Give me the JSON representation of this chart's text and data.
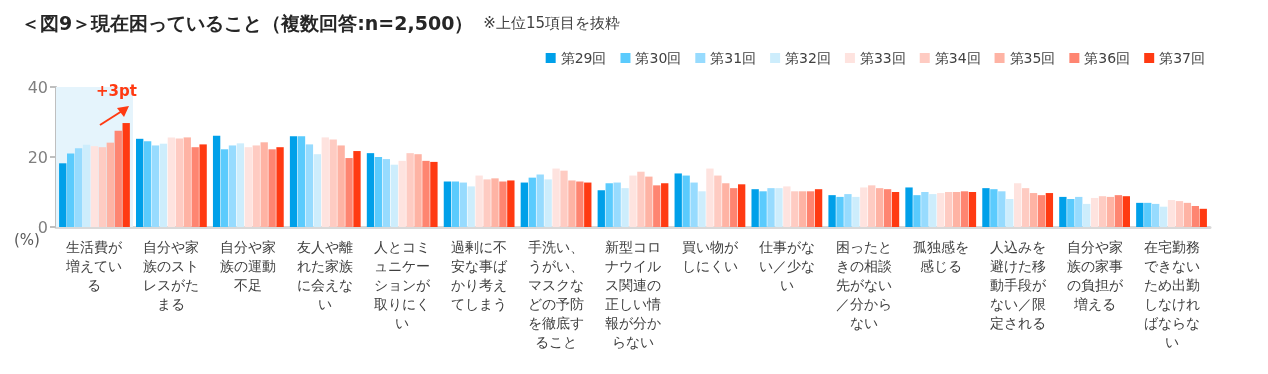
{
  "chart_data": {
    "type": "bar",
    "title": "＜図9＞現在困っていること（複数回答:n=2,500）",
    "subtitle": "※上位15項目を抜粋",
    "ylabel": "(%)",
    "categories": [
      "生活費が増えている",
      "自分や家族のストレスがたまる",
      "自分や家族の運動不足",
      "友人や離れた家族に会えない",
      "人とコミュニケーションが取りにくい",
      "過剰に不安な事ばかり考えてしまう",
      "手洗い、うがい、マスクなどの予防を徹底すること",
      "新型コロナウイルス関連の正しい情報が分からない",
      "買い物がしにくい",
      "仕事がない／少ない",
      "困ったときの相談先がない／分からない",
      "孤独感を感じる",
      "人込みを避けた移動手段がない／限定される",
      "自分や家族の家事の負担が増える",
      "在宅勤務できないため出勤しなければならない"
    ],
    "series": [
      {
        "name": "第29回",
        "color": "#00a0e9",
        "values": [
          18.2,
          25.2,
          26.1,
          25.9,
          21.1,
          13.0,
          12.7,
          10.5,
          15.3,
          10.8,
          9.1,
          11.3,
          11.1,
          8.6,
          6.9
        ]
      },
      {
        "name": "第30回",
        "color": "#5bcbfd",
        "values": [
          21.0,
          24.5,
          22.2,
          25.9,
          20.0,
          13.0,
          14.1,
          12.5,
          14.7,
          10.2,
          8.6,
          9.1,
          10.8,
          8.0,
          6.9
        ]
      },
      {
        "name": "第31回",
        "color": "#97dbfe",
        "values": [
          22.5,
          23.3,
          23.3,
          23.6,
          19.4,
          12.7,
          15.0,
          12.7,
          12.7,
          11.1,
          9.4,
          10.0,
          10.2,
          8.6,
          6.6
        ]
      },
      {
        "name": "第32回",
        "color": "#cdedfc",
        "values": [
          23.5,
          23.8,
          23.9,
          20.8,
          17.8,
          11.6,
          13.6,
          11.1,
          10.2,
          11.1,
          8.6,
          9.4,
          8.0,
          6.6,
          5.8
        ]
      },
      {
        "name": "第33回",
        "color": "#fee3df",
        "values": [
          23.1,
          25.6,
          22.8,
          25.6,
          18.9,
          14.7,
          16.7,
          14.7,
          16.7,
          11.6,
          11.3,
          9.7,
          12.5,
          8.3,
          7.7
        ]
      },
      {
        "name": "第34回",
        "color": "#fecbc2",
        "values": [
          22.8,
          25.3,
          23.3,
          25.0,
          21.1,
          13.6,
          16.1,
          15.8,
          14.7,
          10.2,
          11.9,
          10.0,
          11.1,
          8.8,
          7.4
        ]
      },
      {
        "name": "第35回",
        "color": "#feb3a4",
        "values": [
          24.1,
          25.6,
          24.2,
          23.3,
          20.8,
          13.9,
          13.3,
          14.4,
          12.5,
          10.2,
          11.1,
          10.0,
          9.7,
          8.6,
          6.9
        ]
      },
      {
        "name": "第36回",
        "color": "#fe8571",
        "values": [
          27.5,
          22.8,
          22.2,
          19.7,
          18.9,
          13.0,
          13.0,
          11.9,
          11.1,
          10.2,
          10.8,
          10.2,
          9.1,
          9.1,
          6.0
        ]
      },
      {
        "name": "第37回",
        "color": "#ff3a12",
        "values": [
          29.7,
          23.6,
          22.8,
          21.7,
          18.6,
          13.3,
          12.7,
          12.5,
          12.2,
          10.8,
          10.0,
          10.0,
          9.7,
          8.8,
          5.2
        ]
      }
    ],
    "ylim": [
      0,
      40
    ],
    "yticks": [
      0,
      20,
      40
    ],
    "grid": false,
    "legend": "top right",
    "bands": [
      {
        "axis": "x",
        "from": "生活費が増えている",
        "to": "生活費が増えている",
        "color": "#e5f4fc"
      }
    ],
    "annotations": [
      "+3pt"
    ]
  }
}
